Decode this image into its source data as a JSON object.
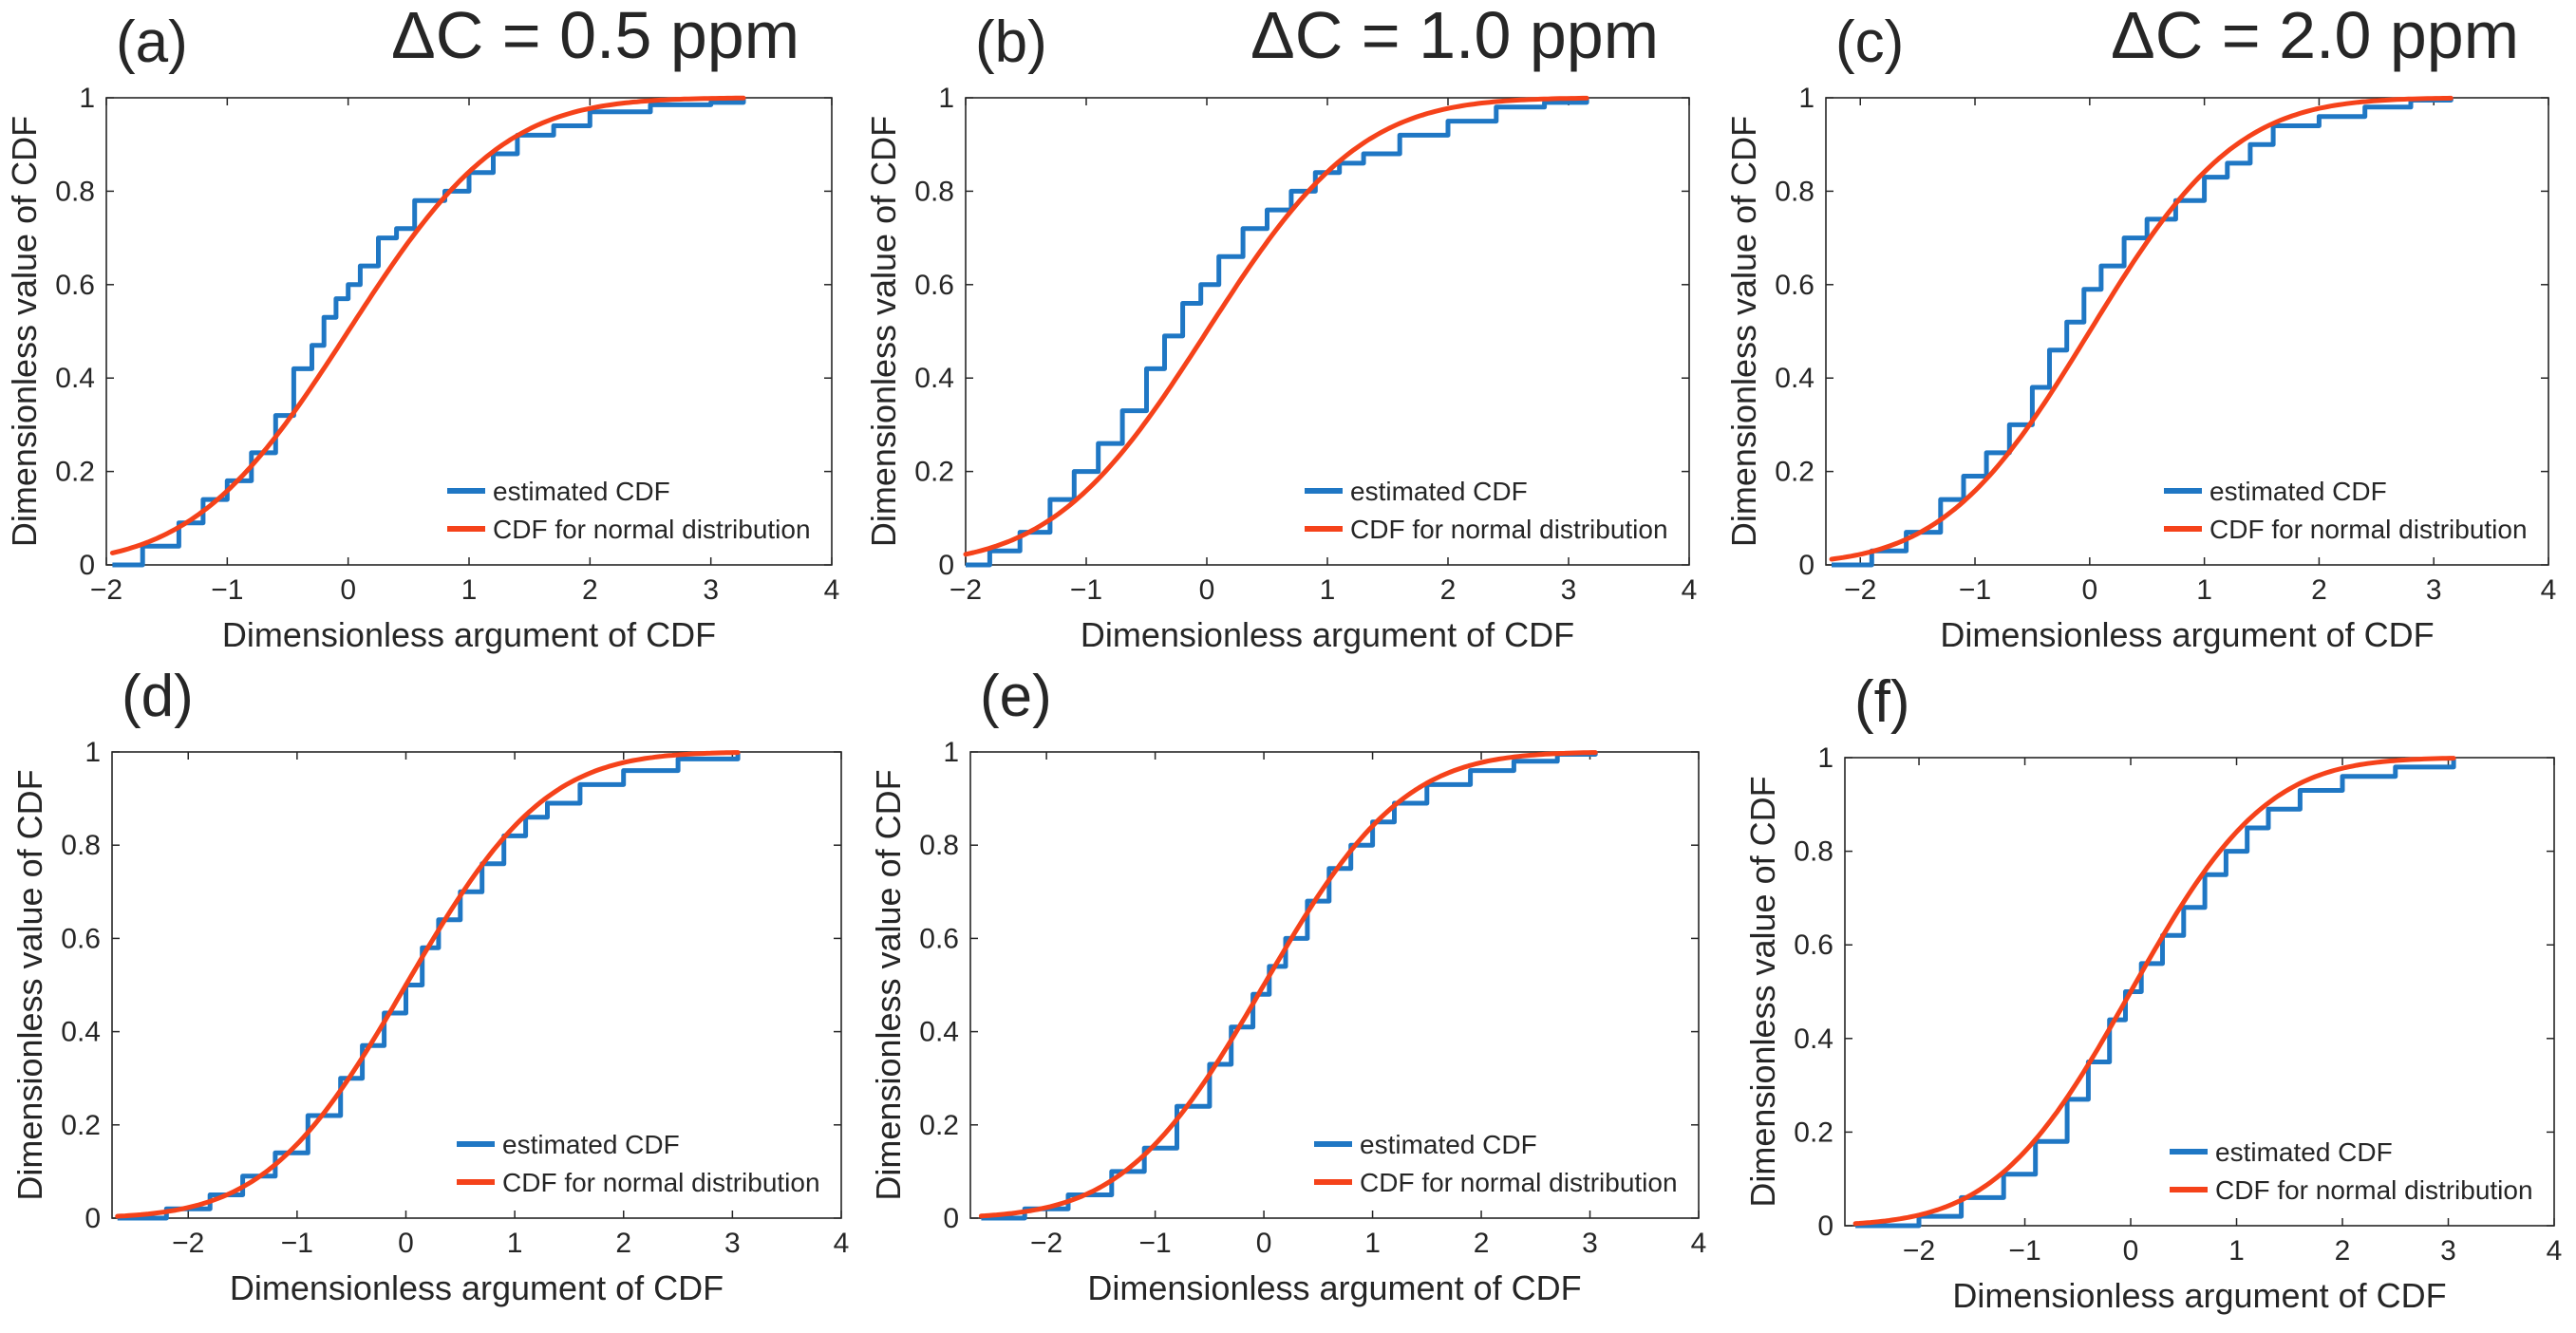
{
  "colors": {
    "estimated": "#1f77c4",
    "normal": "#f5421a",
    "axis": "#262626",
    "tick_text": "#404040",
    "background": "#ffffff"
  },
  "chart_data": [
    {
      "type": "line",
      "panel_label": "(a)",
      "title": "ΔC = 0.5 ppm",
      "xlabel": "Dimensionless argument of CDF",
      "ylabel": "Dimensionless value of CDF",
      "xlim": [
        -2,
        4
      ],
      "ylim": [
        0,
        1
      ],
      "xticks": [
        -2,
        -1,
        0,
        1,
        2,
        3,
        4
      ],
      "yticks": [
        0,
        0.2,
        0.4,
        0.6,
        0.8,
        1
      ],
      "legend_location": "lower-right",
      "series": [
        {
          "name": "estimated CDF",
          "color": "#1f77c4",
          "points": [
            [
              -1.95,
              0.0
            ],
            [
              -1.7,
              0.04
            ],
            [
              -1.4,
              0.09
            ],
            [
              -1.2,
              0.14
            ],
            [
              -1.0,
              0.18
            ],
            [
              -0.8,
              0.24
            ],
            [
              -0.6,
              0.32
            ],
            [
              -0.45,
              0.42
            ],
            [
              -0.3,
              0.47
            ],
            [
              -0.2,
              0.53
            ],
            [
              -0.1,
              0.57
            ],
            [
              0.0,
              0.6
            ],
            [
              0.1,
              0.64
            ],
            [
              0.25,
              0.7
            ],
            [
              0.4,
              0.72
            ],
            [
              0.55,
              0.78
            ],
            [
              0.8,
              0.8
            ],
            [
              1.0,
              0.84
            ],
            [
              1.2,
              0.88
            ],
            [
              1.4,
              0.92
            ],
            [
              1.7,
              0.94
            ],
            [
              2.0,
              0.97
            ],
            [
              2.5,
              0.985
            ],
            [
              3.0,
              0.99
            ],
            [
              3.27,
              1.0
            ]
          ]
        },
        {
          "name": "CDF for normal distribution",
          "color": "#f5421a",
          "mean": 0,
          "std": 1,
          "x_range": [
            -1.95,
            3.27
          ]
        }
      ]
    },
    {
      "type": "line",
      "panel_label": "(b)",
      "title": "ΔC = 1.0 ppm",
      "xlabel": "Dimensionless argument of CDF",
      "ylabel": "Dimensionless value of CDF",
      "xlim": [
        -2,
        4
      ],
      "ylim": [
        0,
        1
      ],
      "xticks": [
        -2,
        -1,
        0,
        1,
        2,
        3,
        4
      ],
      "yticks": [
        0,
        0.2,
        0.4,
        0.6,
        0.8,
        1
      ],
      "legend_location": "lower-right",
      "series": [
        {
          "name": "estimated CDF",
          "color": "#1f77c4",
          "points": [
            [
              -2.0,
              0.0
            ],
            [
              -1.8,
              0.03
            ],
            [
              -1.55,
              0.07
            ],
            [
              -1.3,
              0.14
            ],
            [
              -1.1,
              0.2
            ],
            [
              -0.9,
              0.26
            ],
            [
              -0.7,
              0.33
            ],
            [
              -0.5,
              0.42
            ],
            [
              -0.35,
              0.49
            ],
            [
              -0.2,
              0.56
            ],
            [
              -0.05,
              0.6
            ],
            [
              0.1,
              0.66
            ],
            [
              0.3,
              0.72
            ],
            [
              0.5,
              0.76
            ],
            [
              0.7,
              0.8
            ],
            [
              0.9,
              0.84
            ],
            [
              1.1,
              0.86
            ],
            [
              1.3,
              0.88
            ],
            [
              1.6,
              0.92
            ],
            [
              2.0,
              0.95
            ],
            [
              2.4,
              0.98
            ],
            [
              2.8,
              0.99
            ],
            [
              3.15,
              1.0
            ]
          ]
        },
        {
          "name": "CDF for normal distribution",
          "color": "#f5421a",
          "mean": 0,
          "std": 1,
          "x_range": [
            -2.0,
            3.15
          ]
        }
      ]
    },
    {
      "type": "line",
      "panel_label": "(c)",
      "title": "ΔC = 2.0 ppm",
      "xlabel": "Dimensionless argument of CDF",
      "ylabel": "Dimensionless value of CDF",
      "xlim": [
        -2.3,
        4
      ],
      "ylim": [
        0,
        1
      ],
      "xticks": [
        -2,
        -1,
        0,
        1,
        2,
        3,
        4
      ],
      "yticks": [
        0,
        0.2,
        0.4,
        0.6,
        0.8,
        1
      ],
      "legend_location": "lower-right",
      "series": [
        {
          "name": "estimated CDF",
          "color": "#1f77c4",
          "points": [
            [
              -2.25,
              0.0
            ],
            [
              -1.9,
              0.03
            ],
            [
              -1.6,
              0.07
            ],
            [
              -1.3,
              0.14
            ],
            [
              -1.1,
              0.19
            ],
            [
              -0.9,
              0.24
            ],
            [
              -0.7,
              0.3
            ],
            [
              -0.5,
              0.38
            ],
            [
              -0.35,
              0.46
            ],
            [
              -0.2,
              0.52
            ],
            [
              -0.05,
              0.59
            ],
            [
              0.1,
              0.64
            ],
            [
              0.3,
              0.7
            ],
            [
              0.5,
              0.74
            ],
            [
              0.75,
              0.78
            ],
            [
              1.0,
              0.83
            ],
            [
              1.2,
              0.86
            ],
            [
              1.4,
              0.9
            ],
            [
              1.6,
              0.94
            ],
            [
              2.0,
              0.96
            ],
            [
              2.4,
              0.98
            ],
            [
              2.8,
              0.995
            ],
            [
              3.15,
              1.0
            ]
          ]
        },
        {
          "name": "CDF for normal distribution",
          "color": "#f5421a",
          "mean": 0,
          "std": 1,
          "x_range": [
            -2.25,
            3.15
          ]
        }
      ]
    },
    {
      "type": "line",
      "panel_label": "(d)",
      "title": "",
      "xlabel": "Dimensionless argument of CDF",
      "ylabel": "Dimensionless value of CDF",
      "xlim": [
        -2.7,
        4
      ],
      "ylim": [
        0,
        1
      ],
      "xticks": [
        -2,
        -1,
        0,
        1,
        2,
        3,
        4
      ],
      "yticks": [
        0,
        0.2,
        0.4,
        0.6,
        0.8,
        1
      ],
      "legend_location": "lower-right",
      "series": [
        {
          "name": "estimated CDF",
          "color": "#1f77c4",
          "points": [
            [
              -2.65,
              0.0
            ],
            [
              -2.2,
              0.02
            ],
            [
              -1.8,
              0.05
            ],
            [
              -1.5,
              0.09
            ],
            [
              -1.2,
              0.14
            ],
            [
              -0.9,
              0.22
            ],
            [
              -0.6,
              0.3
            ],
            [
              -0.4,
              0.37
            ],
            [
              -0.2,
              0.44
            ],
            [
              0.0,
              0.5
            ],
            [
              0.15,
              0.58
            ],
            [
              0.3,
              0.64
            ],
            [
              0.5,
              0.7
            ],
            [
              0.7,
              0.76
            ],
            [
              0.9,
              0.82
            ],
            [
              1.1,
              0.86
            ],
            [
              1.3,
              0.89
            ],
            [
              1.6,
              0.93
            ],
            [
              2.0,
              0.96
            ],
            [
              2.5,
              0.985
            ],
            [
              3.05,
              1.0
            ]
          ]
        },
        {
          "name": "CDF for normal distribution",
          "color": "#f5421a",
          "mean": 0,
          "std": 1,
          "x_range": [
            -2.65,
            3.05
          ]
        }
      ]
    },
    {
      "type": "line",
      "panel_label": "(e)",
      "title": "",
      "xlabel": "Dimensionless argument of CDF",
      "ylabel": "Dimensionless value of CDF",
      "xlim": [
        -2.7,
        4
      ],
      "ylim": [
        0,
        1
      ],
      "xticks": [
        -2,
        -1,
        0,
        1,
        2,
        3,
        4
      ],
      "yticks": [
        0,
        0.2,
        0.4,
        0.6,
        0.8,
        1
      ],
      "legend_location": "lower-right",
      "series": [
        {
          "name": "estimated CDF",
          "color": "#1f77c4",
          "points": [
            [
              -2.6,
              0.0
            ],
            [
              -2.2,
              0.02
            ],
            [
              -1.8,
              0.05
            ],
            [
              -1.4,
              0.1
            ],
            [
              -1.1,
              0.15
            ],
            [
              -0.8,
              0.24
            ],
            [
              -0.5,
              0.33
            ],
            [
              -0.3,
              0.41
            ],
            [
              -0.1,
              0.48
            ],
            [
              0.05,
              0.54
            ],
            [
              0.2,
              0.6
            ],
            [
              0.4,
              0.68
            ],
            [
              0.6,
              0.75
            ],
            [
              0.8,
              0.8
            ],
            [
              1.0,
              0.85
            ],
            [
              1.2,
              0.89
            ],
            [
              1.5,
              0.93
            ],
            [
              1.9,
              0.96
            ],
            [
              2.3,
              0.98
            ],
            [
              2.7,
              0.995
            ],
            [
              3.05,
              1.0
            ]
          ]
        },
        {
          "name": "CDF for normal distribution",
          "color": "#f5421a",
          "mean": 0,
          "std": 1,
          "x_range": [
            -2.6,
            3.05
          ]
        }
      ]
    },
    {
      "type": "line",
      "panel_label": "(f)",
      "title": "",
      "xlabel": "Dimensionless argument of CDF",
      "ylabel": "Dimensionless value of CDF",
      "xlim": [
        -2.7,
        4
      ],
      "ylim": [
        0,
        1
      ],
      "xticks": [
        -2,
        -1,
        0,
        1,
        2,
        3,
        4
      ],
      "yticks": [
        0,
        0.2,
        0.4,
        0.6,
        0.8,
        1
      ],
      "legend_location": "lower-right",
      "series": [
        {
          "name": "estimated CDF",
          "color": "#1f77c4",
          "points": [
            [
              -2.6,
              0.0
            ],
            [
              -2.0,
              0.02
            ],
            [
              -1.6,
              0.06
            ],
            [
              -1.2,
              0.11
            ],
            [
              -0.9,
              0.18
            ],
            [
              -0.6,
              0.27
            ],
            [
              -0.4,
              0.35
            ],
            [
              -0.2,
              0.44
            ],
            [
              -0.05,
              0.5
            ],
            [
              0.1,
              0.56
            ],
            [
              0.3,
              0.62
            ],
            [
              0.5,
              0.68
            ],
            [
              0.7,
              0.75
            ],
            [
              0.9,
              0.8
            ],
            [
              1.1,
              0.85
            ],
            [
              1.3,
              0.89
            ],
            [
              1.6,
              0.93
            ],
            [
              2.0,
              0.96
            ],
            [
              2.5,
              0.98
            ],
            [
              3.05,
              1.0
            ]
          ]
        },
        {
          "name": "CDF for normal distribution",
          "color": "#f5421a",
          "mean": 0,
          "std": 1,
          "x_range": [
            -2.6,
            3.05
          ]
        }
      ]
    }
  ]
}
